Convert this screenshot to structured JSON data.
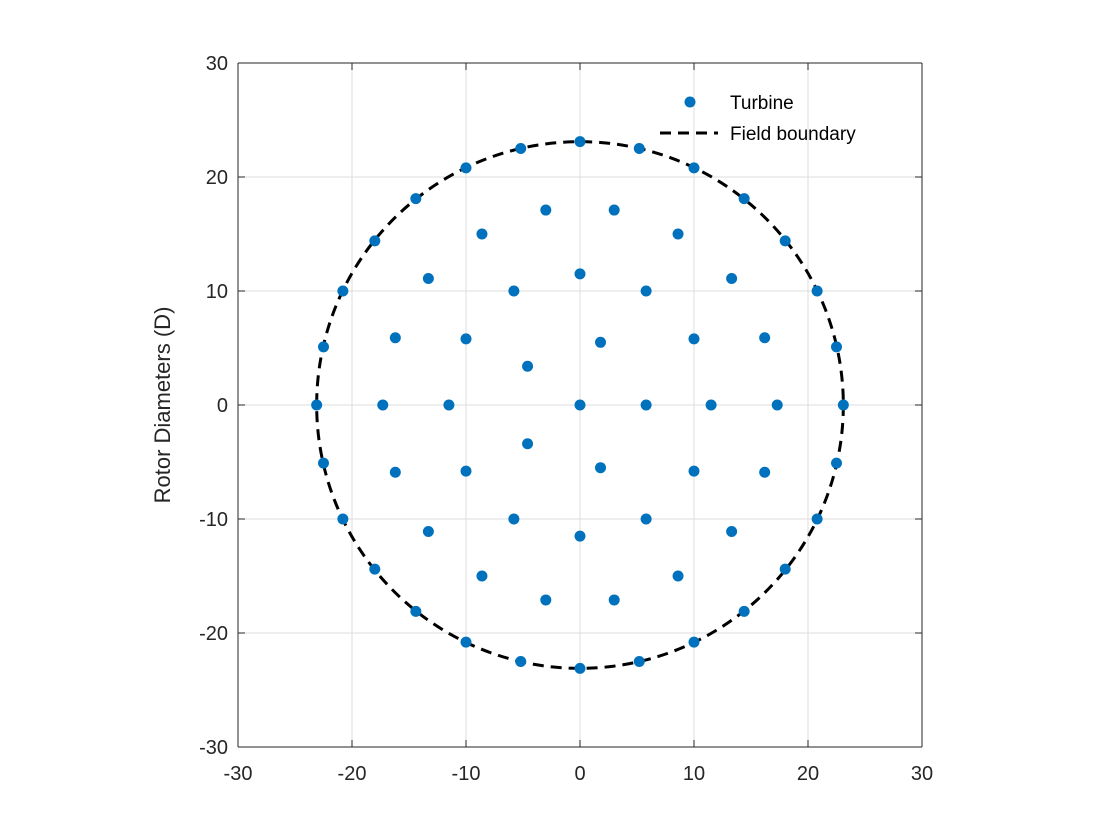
{
  "chart_data": {
    "type": "scatter",
    "title": "",
    "xlabel": "",
    "ylabel": "Rotor Diameters (D)",
    "xlim": [
      -30,
      30
    ],
    "ylim": [
      -30,
      30
    ],
    "xticks": [
      -30,
      -20,
      -10,
      0,
      10,
      20,
      30
    ],
    "yticks": [
      -30,
      -20,
      -10,
      0,
      10,
      20,
      30
    ],
    "grid": true,
    "legend_position": "top-right",
    "colors": {
      "turbine": "#0072BD",
      "boundary": "#000000"
    },
    "series": [
      {
        "name": "Turbine",
        "kind": "scatter",
        "points": [
          [
            0,
            23.1
          ],
          [
            5.2,
            22.5
          ],
          [
            10,
            20.8
          ],
          [
            14.4,
            18.1
          ],
          [
            18,
            14.4
          ],
          [
            20.8,
            10
          ],
          [
            22.5,
            5.1
          ],
          [
            23.1,
            0
          ],
          [
            22.5,
            -5.1
          ],
          [
            20.8,
            -10
          ],
          [
            18,
            -14.4
          ],
          [
            14.4,
            -18.1
          ],
          [
            10,
            -20.8
          ],
          [
            5.2,
            -22.5
          ],
          [
            0,
            -23.1
          ],
          [
            -5.2,
            -22.5
          ],
          [
            -10,
            -20.8
          ],
          [
            -14.4,
            -18.1
          ],
          [
            -18,
            -14.4
          ],
          [
            -20.8,
            -10
          ],
          [
            -22.5,
            -5.1
          ],
          [
            -23.1,
            0
          ],
          [
            -22.5,
            5.1
          ],
          [
            -20.8,
            10
          ],
          [
            -18,
            14.4
          ],
          [
            -14.4,
            18.1
          ],
          [
            -10,
            20.8
          ],
          [
            -5.2,
            22.5
          ],
          [
            3,
            17.1
          ],
          [
            8.6,
            15
          ],
          [
            13.3,
            11.1
          ],
          [
            16.2,
            5.9
          ],
          [
            17.3,
            0
          ],
          [
            16.2,
            -5.9
          ],
          [
            13.3,
            -11.1
          ],
          [
            8.6,
            -15
          ],
          [
            3,
            -17.1
          ],
          [
            -3,
            -17.1
          ],
          [
            -8.6,
            -15
          ],
          [
            -13.3,
            -11.1
          ],
          [
            -16.2,
            -5.9
          ],
          [
            -17.3,
            0
          ],
          [
            -16.2,
            5.9
          ],
          [
            -13.3,
            11.1
          ],
          [
            -8.6,
            15
          ],
          [
            -3,
            17.1
          ],
          [
            0,
            11.5
          ],
          [
            5.8,
            10
          ],
          [
            10,
            5.8
          ],
          [
            11.5,
            0
          ],
          [
            10,
            -5.8
          ],
          [
            5.8,
            -10
          ],
          [
            0,
            -11.5
          ],
          [
            -5.8,
            -10
          ],
          [
            -10,
            -5.8
          ],
          [
            -11.5,
            0
          ],
          [
            -10,
            5.8
          ],
          [
            -5.8,
            10
          ],
          [
            1.8,
            5.5
          ],
          [
            5.8,
            0
          ],
          [
            1.8,
            -5.5
          ],
          [
            -4.6,
            -3.4
          ],
          [
            -4.6,
            3.4
          ],
          [
            0,
            0
          ]
        ]
      },
      {
        "name": "Field boundary",
        "kind": "line",
        "style": "dashed",
        "shape": "circle",
        "center": [
          0,
          0
        ],
        "radius": 23.1
      }
    ]
  }
}
